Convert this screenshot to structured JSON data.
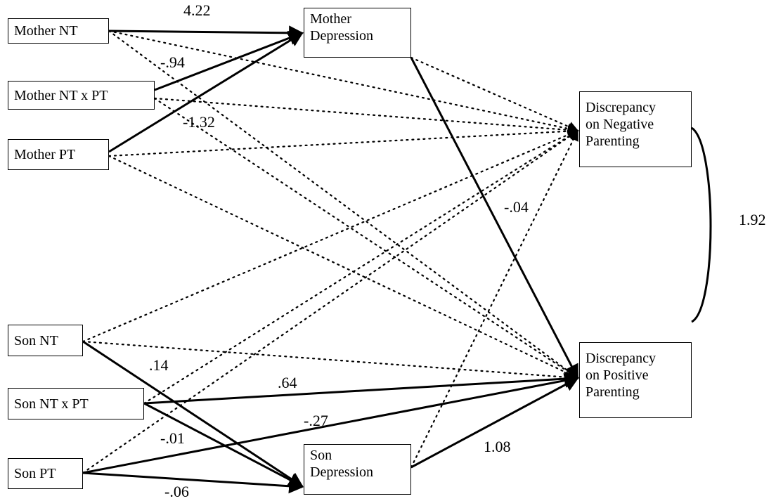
{
  "nodes": {
    "mother_nt": "Mother NT",
    "mother_ntxpt": "Mother NT x PT",
    "mother_pt": "Mother PT",
    "mother_dep": [
      "Mother",
      "Depression"
    ],
    "disc_neg": [
      "Discrepancy",
      "on Negative",
      "Parenting"
    ],
    "disc_pos": [
      "Discrepancy",
      "on Positive",
      "Parenting"
    ],
    "son_nt": "Son NT",
    "son_ntxpt": "Son NT x PT",
    "son_pt": "Son PT",
    "son_dep": [
      "Son",
      "Depression"
    ]
  },
  "coefficients": {
    "mnt_mdep": "4.22",
    "mntxpt_mdep": "-.94",
    "mpt_mdep": "-1.32",
    "mdep_pos": "-.04",
    "snt_sdep": ".14",
    "sntxpt_pos": ".64",
    "spt_pos": "-.27",
    "sntxpt_sdep": "-.01",
    "spt_sdep": "-.06",
    "sdep_pos": "1.08",
    "neg_pos_cov": "1.92"
  }
}
